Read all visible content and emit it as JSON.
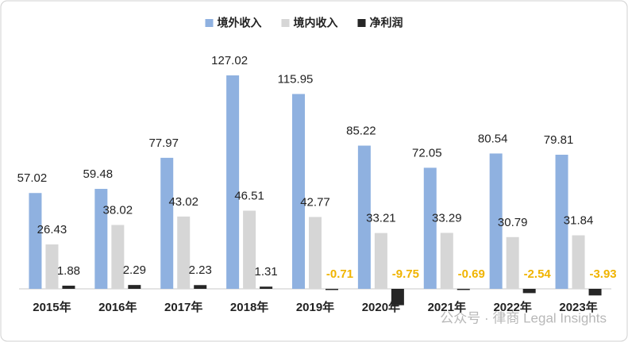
{
  "chart_data": {
    "type": "bar",
    "categories": [
      "2015年",
      "2016年",
      "2017年",
      "2018年",
      "2019年",
      "2020年",
      "2021年",
      "2022年",
      "2023年"
    ],
    "series": [
      {
        "name": "境外收入",
        "color": "#8fb1e0",
        "values": [
          57.02,
          59.48,
          77.97,
          127.02,
          115.95,
          85.22,
          72.05,
          80.54,
          79.81
        ]
      },
      {
        "name": "境内收入",
        "color": "#d6d6d6",
        "values": [
          26.43,
          38.02,
          43.02,
          46.51,
          42.77,
          33.21,
          33.29,
          30.79,
          31.84
        ]
      },
      {
        "name": "净利润",
        "color": "#262626",
        "values": [
          1.88,
          2.29,
          2.23,
          1.31,
          -0.71,
          -9.75,
          -0.69,
          -2.54,
          -3.93
        ]
      }
    ],
    "legend": "top",
    "watermark": "公众号 · 律商 Legal Insights"
  }
}
